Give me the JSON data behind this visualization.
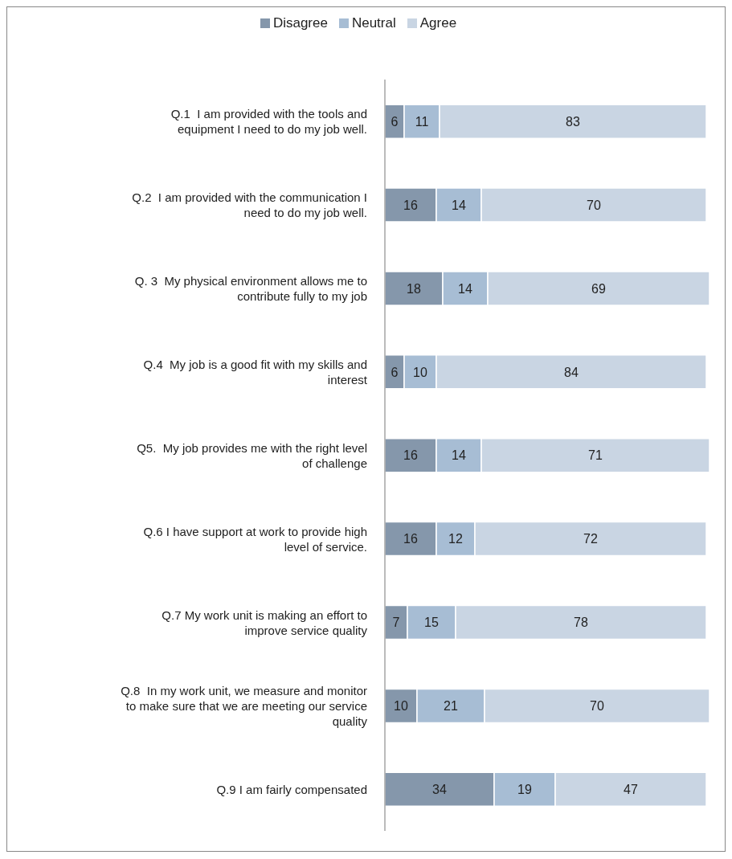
{
  "chart_data": {
    "type": "bar",
    "orientation": "horizontal",
    "stacked": true,
    "data_labels": true,
    "legend": "top",
    "grid": false,
    "categories": [
      "Q.1  I am provided with the tools and equipment I need to do my job well.",
      "Q.2  I am provided with the communication I need to do my job well.",
      "Q. 3  My physical environment allows me to contribute fully to my job",
      "Q.4  My job is a good fit with my skills and interest",
      "Q5.  My job provides me with the right level of challenge",
      "Q.6 I have support at work to provide high level of service.",
      "Q.7 My work unit is making an effort to improve service quality",
      "Q.8  In my work unit, we measure and monitor to make sure that we are meeting our service quality",
      "Q.9 I am fairly compensated"
    ],
    "series": [
      {
        "name": "Disagree",
        "color": "#8597ab",
        "values": [
          6,
          16,
          18,
          6,
          16,
          16,
          7,
          10,
          34
        ]
      },
      {
        "name": "Neutral",
        "color": "#a7bdd4",
        "values": [
          11,
          14,
          14,
          10,
          14,
          12,
          15,
          21,
          19
        ]
      },
      {
        "name": "Agree",
        "color": "#c9d5e3",
        "values": [
          83,
          70,
          69,
          84,
          71,
          72,
          78,
          70,
          47
        ]
      }
    ]
  }
}
